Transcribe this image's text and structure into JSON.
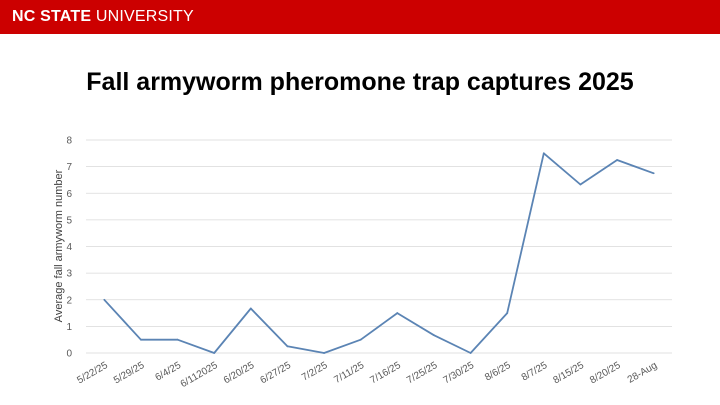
{
  "banner": {
    "logo_bold": "NC STATE",
    "logo_light": "UNIVERSITY",
    "color": "#cc0000"
  },
  "slide": {
    "title": "Fall armyworm pheromone trap captures 2025"
  },
  "chart_data": {
    "type": "line",
    "title": "",
    "xlabel": "",
    "ylabel": "Average fall armyworm number",
    "categories": [
      "5/22/25",
      "5/29/25",
      "6/4/25",
      "6/112025",
      "6/20/25",
      "6/27/25",
      "7/2/25",
      "7/11/25",
      "7/16/25",
      "7/25/25",
      "7/30/25",
      "8/6/25",
      "8/7/25",
      "8/15/25",
      "8/20/25",
      "28-Aug"
    ],
    "values": [
      2,
      0.5,
      0.5,
      0,
      1.67,
      0.25,
      0,
      0.5,
      1.5,
      0.67,
      0,
      1.5,
      7.5,
      6.33,
      7.25,
      6.75
    ],
    "ylim": [
      0,
      8
    ],
    "yticks": [
      0,
      1,
      2,
      3,
      4,
      5,
      6,
      7,
      8
    ],
    "grid": true,
    "legend": "none",
    "line_color": "#5b84b4"
  }
}
